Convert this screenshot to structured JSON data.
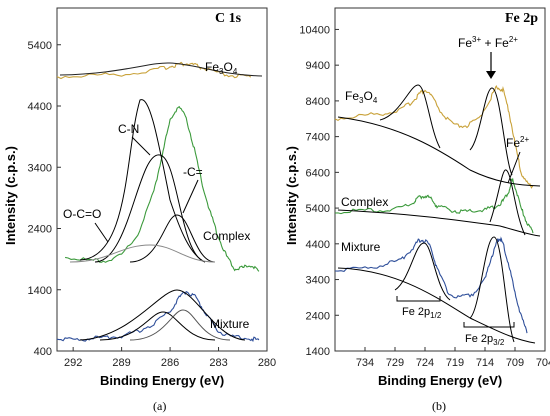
{
  "chart_data": [
    {
      "type": "line",
      "title": "C 1s",
      "xlabel": "Binding Energy (eV)",
      "ylabel": "Intensity (c.p.s.)",
      "panel_label": "(a)",
      "xlim": [
        293,
        280
      ],
      "ylim": [
        400,
        6000
      ],
      "x_ticks": [
        292,
        289,
        286,
        283,
        280
      ],
      "y_ticks": [
        400,
        1400,
        2400,
        3400,
        4400,
        5400
      ],
      "series": [
        {
          "name": "Fe3O4",
          "color": "#c9a23a",
          "x": [
            293,
            291,
            289,
            287,
            286,
            285.5,
            285,
            284.5,
            284,
            283,
            282,
            281
          ],
          "y": [
            4880,
            4900,
            4920,
            4980,
            5050,
            5080,
            5090,
            5070,
            5020,
            4930,
            4890,
            4870
          ]
        },
        {
          "name": "Complex",
          "color": "#3c9a3c",
          "x": [
            292.5,
            291,
            290,
            289,
            288,
            287,
            286.5,
            286,
            285.5,
            285,
            284.5,
            284,
            283.5,
            283,
            282.5,
            282,
            281.5,
            281,
            280.5
          ],
          "y": [
            1950,
            1870,
            1880,
            1960,
            2300,
            3000,
            3600,
            4150,
            4400,
            4200,
            3700,
            3100,
            2650,
            2250,
            1950,
            1750,
            1760,
            1800,
            1700
          ]
        },
        {
          "name": "Mixture",
          "color": "#2f4f9a",
          "x": [
            293,
            292,
            291,
            290,
            289,
            288,
            287,
            286,
            285.5,
            285,
            284.5,
            284,
            283.5,
            283,
            282,
            281,
            280.5
          ],
          "y": [
            600,
            580,
            600,
            620,
            650,
            720,
            850,
            1050,
            1250,
            1380,
            1300,
            1100,
            900,
            720,
            620,
            600,
            580
          ]
        }
      ],
      "annotations": [
        "C-N",
        "O-C=O",
        "-C=",
        "Complex",
        "Mixture",
        "Fe3O4"
      ]
    },
    {
      "type": "line",
      "title": "Fe 2p",
      "xlabel": "Binding Energy (eV)",
      "ylabel": "Intensity (c.p.s.)",
      "panel_label": "(b)",
      "xlim": [
        739,
        704
      ],
      "ylim": [
        1400,
        11000
      ],
      "x_ticks": [
        734,
        729,
        724,
        719,
        714,
        709,
        704
      ],
      "y_ticks": [
        1400,
        2400,
        3400,
        4400,
        5400,
        6400,
        7400,
        8400,
        9400,
        10400
      ],
      "series": [
        {
          "name": "Fe3O4",
          "color": "#c9a23a",
          "x": [
            739,
            735,
            731,
            728,
            726,
            725,
            724,
            723,
            721,
            719,
            717,
            715,
            713,
            712,
            711,
            710,
            709,
            708,
            707,
            706
          ],
          "y": [
            7900,
            7980,
            8050,
            8150,
            8400,
            8600,
            8700,
            8550,
            8000,
            7700,
            7700,
            7900,
            8500,
            8800,
            8700,
            8100,
            7200,
            6400,
            6100,
            6000
          ]
        },
        {
          "name": "Complex",
          "color": "#3c9a3c",
          "x": [
            739,
            735,
            731,
            728,
            726,
            725,
            724,
            723,
            722,
            720,
            718,
            716,
            714,
            712,
            711,
            710,
            709.5,
            709,
            708,
            707,
            706
          ],
          "y": [
            5300,
            5320,
            5350,
            5400,
            5550,
            5700,
            5750,
            5650,
            5450,
            5350,
            5300,
            5300,
            5350,
            5450,
            5600,
            5900,
            6200,
            6000,
            5400,
            5000,
            4700
          ]
        },
        {
          "name": "Mixture",
          "color": "#2f4f9a",
          "x": [
            739,
            735,
            731,
            728,
            726,
            725,
            724,
            723,
            722,
            720,
            718,
            716,
            714,
            713,
            712,
            711.5,
            711,
            710,
            709,
            708,
            707
          ],
          "y": [
            3650,
            3700,
            3800,
            3950,
            4300,
            4500,
            4500,
            4300,
            3700,
            3000,
            2900,
            3000,
            3400,
            4000,
            4450,
            4550,
            4400,
            3800,
            3000,
            2400,
            1900
          ]
        }
      ],
      "annotations": [
        "Fe3O4",
        "Fe3+ + Fe2+",
        "Fe2+",
        "Complex",
        "Mixture",
        "Fe 2p1/2",
        "Fe 2p3/2"
      ]
    }
  ]
}
